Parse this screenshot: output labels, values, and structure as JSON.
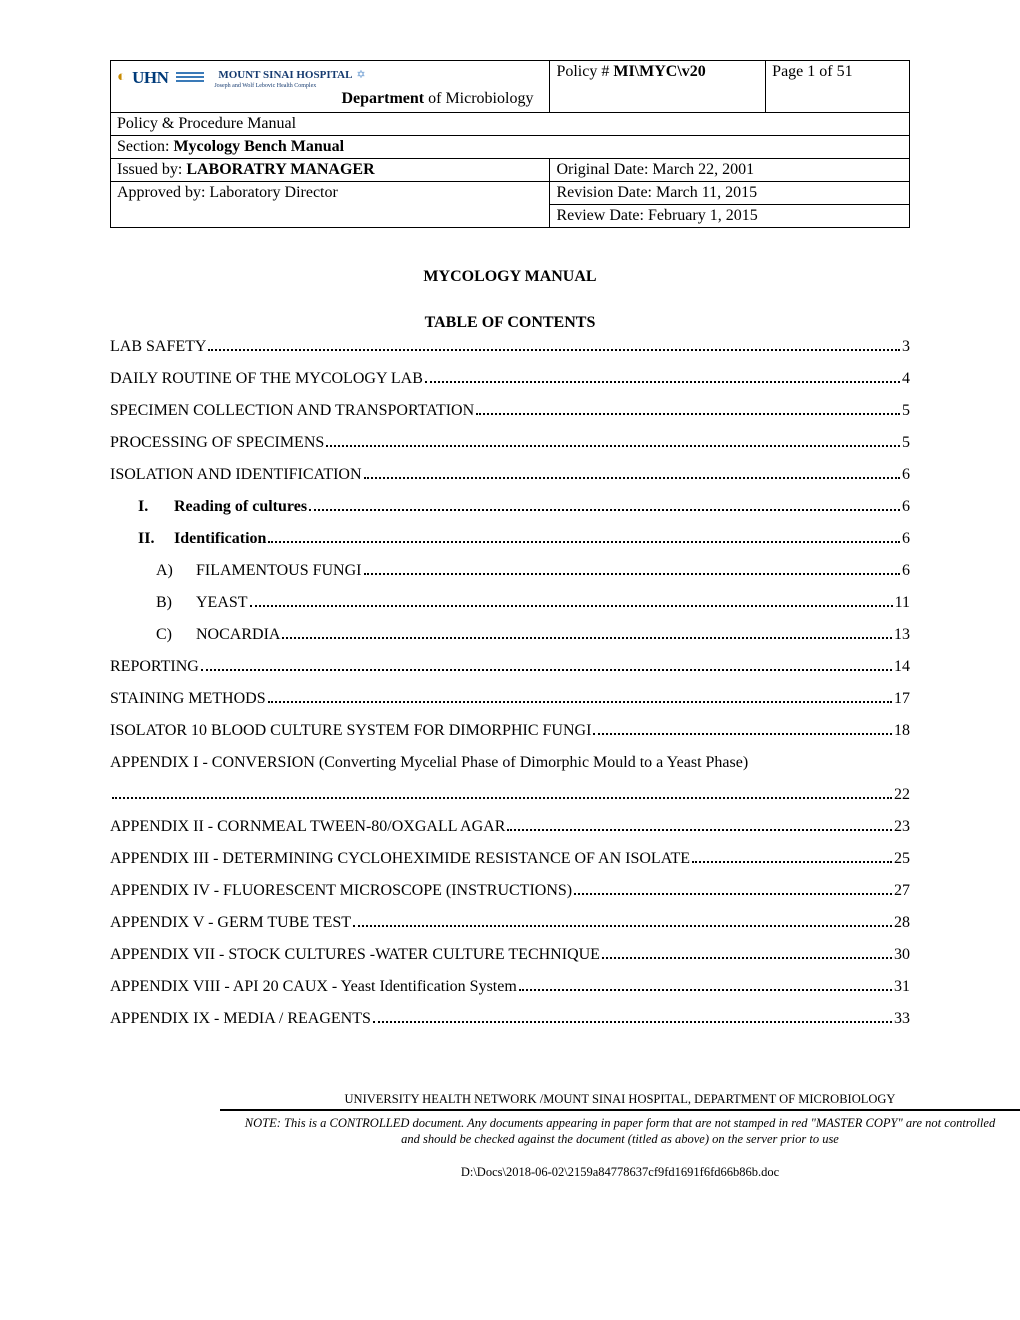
{
  "header": {
    "logo": {
      "uhn": "UHN",
      "sinai": "MOUNT SINAI HOSPITAL",
      "sinai_sub": "Joseph and Wolf Lebovic Health Complex"
    },
    "dept_label": "Department",
    "dept_of": " of Microbiology",
    "policy_label": "Policy # ",
    "policy_num": "MI\\MYC\\v20",
    "page_label": "Page 1 of 51",
    "manual_line": "Policy & Procedure Manual",
    "section_label": "Section:  ",
    "section_value": "Mycology Bench Manual",
    "issued_label": "Issued by: ",
    "issued_value": "LABORATRY MANAGER",
    "orig_date": "Original Date: March 22, 2001",
    "approved": "Approved by: Laboratory Director",
    "rev_date": "Revision Date: March 11, 2015",
    "review_date": "Review Date: February 1, 2015"
  },
  "titles": {
    "manual": "MYCOLOGY MANUAL",
    "toc": "TABLE OF CONTENTS"
  },
  "toc": [
    {
      "label": "LAB SAFETY",
      "page": "3",
      "indent": 0
    },
    {
      "label": "DAILY ROUTINE OF THE MYCOLOGY LAB",
      "page": "4",
      "indent": 0
    },
    {
      "label": "SPECIMEN COLLECTION AND TRANSPORTATION",
      "page": "5",
      "indent": 0
    },
    {
      "label": "PROCESSING OF SPECIMENS",
      "page": "5",
      "indent": 0
    },
    {
      "label": "ISOLATION AND IDENTIFICATION",
      "page": "6",
      "indent": 0
    },
    {
      "num": "I.",
      "label": "Reading of cultures",
      "page": "6",
      "indent": 1,
      "bold": true
    },
    {
      "num": "II.",
      "label": "Identification",
      "page": "6",
      "indent": 1,
      "bold": true
    },
    {
      "letter": "A)",
      "label": "FILAMENTOUS FUNGI",
      "page": "6",
      "indent": 2
    },
    {
      "letter": "B)",
      "label": "YEAST",
      "page": "11",
      "indent": 2
    },
    {
      "letter": "C)",
      "label": "NOCARDIA",
      "page": "13",
      "indent": 2
    },
    {
      "label": "REPORTING",
      "page": "14",
      "indent": 0
    },
    {
      "label": "STAINING METHODS",
      "page": "17",
      "indent": 0
    },
    {
      "label": "ISOLATOR 10 BLOOD CULTURE SYSTEM FOR DIMORPHIC FUNGI",
      "page": "18",
      "indent": 0
    },
    {
      "label": "APPENDIX I - CONVERSION (Converting Mycelial Phase of Dimorphic Mould to a Yeast Phase)",
      "page": "",
      "indent": 0,
      "nopage": true
    },
    {
      "label": "",
      "page": "22",
      "indent": 0
    },
    {
      "label": "APPENDIX II - CORNMEAL TWEEN-80/OXGALL AGAR",
      "page": "23",
      "indent": 0
    },
    {
      "label": "APPENDIX III - DETERMINING CYCLOHEXIMIDE RESISTANCE OF AN ISOLATE",
      "page": "25",
      "indent": 0
    },
    {
      "label": "APPENDIX IV - FLUORESCENT MICROSCOPE (INSTRUCTIONS)",
      "page": "27",
      "indent": 0
    },
    {
      "label": "APPENDIX V - GERM TUBE TEST",
      "page": "28",
      "indent": 0
    },
    {
      "label": "APPENDIX VII - STOCK CULTURES -WATER CULTURE TECHNIQUE",
      "page": "30",
      "indent": 0
    },
    {
      "label": "APPENDIX VIII - API 20 CAUX - Yeast Identification System",
      "page": "31",
      "indent": 0
    },
    {
      "label": "APPENDIX IX - MEDIA / REAGENTS",
      "page": "33",
      "indent": 0
    }
  ],
  "footer": {
    "org": "UNIVERSITY HEALTH NETWORK /MOUNT SINAI HOSPITAL, DEPARTMENT OF MICROBIOLOGY",
    "note": "NOTE: This is a CONTROLLED document. Any documents appearing in paper form that are not stamped in red \"MASTER COPY\" are not controlled and should be checked against the document (titled as above) on the server prior to use",
    "path": "D:\\Docs\\2018-06-02\\2159a84778637cf9fd1691f6fd66b86b.doc"
  }
}
